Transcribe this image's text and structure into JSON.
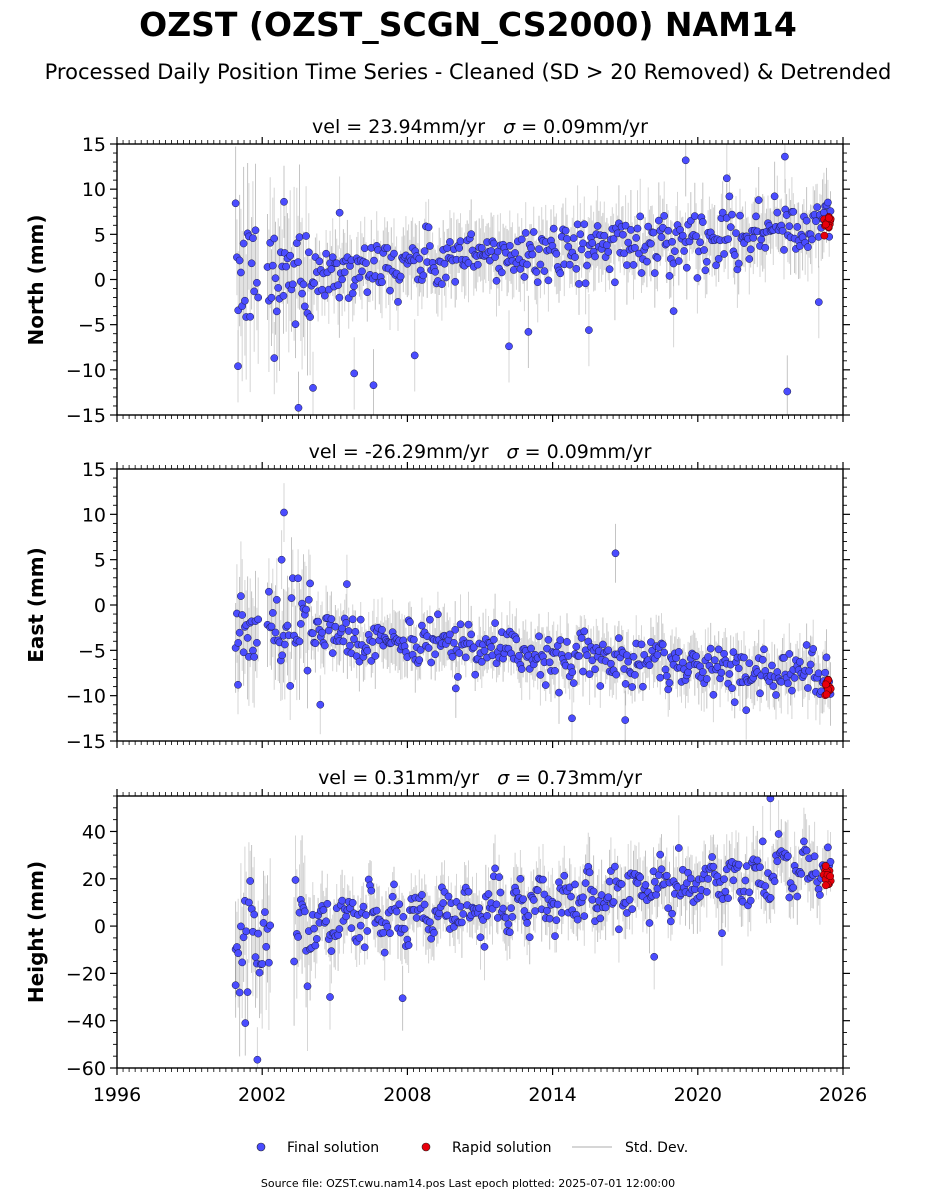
{
  "title": "OZST (OZST_SCGN_CS2000) NAM14",
  "subtitle": "Processed Daily Position Time Series - Cleaned (SD > 20 Removed) & Detrended",
  "legend": {
    "final": "Final solution",
    "rapid": "Rapid solution",
    "std": "Std. Dev."
  },
  "footer": "Source file: OZST.cwu.nam14.pos  Last epoch plotted: 2025-07-01 12:00:00",
  "colors": {
    "final": "#4a4cff",
    "rapid": "#e8000b",
    "std": "#b5b5b5",
    "std_dense": "#555555"
  },
  "chart_data": [
    {
      "type": "scatter",
      "title_prefix": "vel = ",
      "velocity": "23.94",
      "velocity_unit": "mm/yr",
      "sigma_symbol": "σ",
      "sigma": "0.09",
      "sigma_unit": "mm/yr",
      "ylabel": "North (mm)",
      "xlim": [
        1996,
        2026
      ],
      "ylim": [
        -15,
        15
      ],
      "yticks": [
        -15,
        -10,
        -5,
        0,
        5,
        10,
        15
      ],
      "xticks": [
        1996,
        2002,
        2008,
        2014,
        2020,
        2026
      ],
      "show_xticklabels": false,
      "final_solution": {
        "x_range": [
          2000.9,
          2025.5
        ],
        "gap": [
          2001.85,
          2002.2
        ],
        "trend_start": 0.0,
        "trend_end": 6.0,
        "scatter": 1.6,
        "outliers": [
          [
            2001.0,
            -9.6
          ],
          [
            2002.5,
            -8.7
          ],
          [
            2003.5,
            -14.2
          ],
          [
            2004.1,
            -12.0
          ],
          [
            2005.8,
            -10.4
          ],
          [
            2006.6,
            -11.7
          ],
          [
            2008.3,
            -8.4
          ],
          [
            2012.2,
            -7.4
          ],
          [
            2013.0,
            -5.8
          ],
          [
            2015.5,
            -5.6
          ],
          [
            2019.0,
            -3.5
          ],
          [
            2019.5,
            13.2
          ],
          [
            2021.2,
            11.2
          ],
          [
            2023.6,
            13.6
          ],
          [
            2023.7,
            -12.4
          ],
          [
            2025.0,
            -2.5
          ],
          [
            2005.2,
            7.4
          ],
          [
            2002.9,
            8.6
          ]
        ]
      },
      "rapid_solution": {
        "x_range": [
          2025.2,
          2025.5
        ],
        "y_range": [
          4.5,
          7.0
        ]
      }
    },
    {
      "type": "scatter",
      "title_prefix": "vel = ",
      "velocity": "-26.29",
      "velocity_unit": "mm/yr",
      "sigma_symbol": "σ",
      "sigma": "0.09",
      "sigma_unit": "mm/yr",
      "ylabel": "East (mm)",
      "xlim": [
        1996,
        2026
      ],
      "ylim": [
        -15,
        15
      ],
      "yticks": [
        -15,
        -10,
        -5,
        0,
        5,
        10,
        15
      ],
      "xticks": [
        1996,
        2002,
        2008,
        2014,
        2020,
        2026
      ],
      "show_xticklabels": false,
      "final_solution": {
        "x_range": [
          2000.9,
          2025.5
        ],
        "gap": [
          2001.85,
          2002.2
        ],
        "trend_start": -2.5,
        "trend_end": -8.0,
        "scatter": 1.3,
        "outliers": [
          [
            2002.9,
            10.2
          ],
          [
            2002.8,
            5.0
          ],
          [
            2016.6,
            5.7
          ],
          [
            2004.4,
            -11.0
          ],
          [
            2014.8,
            -12.5
          ],
          [
            2017.0,
            -12.7
          ],
          [
            2001.0,
            -8.8
          ],
          [
            2005.5,
            2.3
          ],
          [
            2010.0,
            -9.2
          ],
          [
            2022.0,
            -11.6
          ]
        ]
      },
      "rapid_solution": {
        "x_range": [
          2025.2,
          2025.5
        ],
        "y_range": [
          -10.0,
          -8.2
        ]
      }
    },
    {
      "type": "scatter",
      "title_prefix": "vel = ",
      "velocity": "0.31",
      "velocity_unit": "mm/yr",
      "sigma_symbol": "σ",
      "sigma": "0.73",
      "sigma_unit": "mm/yr",
      "ylabel": "Height (mm)",
      "xlim": [
        1996,
        2026
      ],
      "ylim": [
        -60,
        55
      ],
      "yticks": [
        -60,
        -40,
        -20,
        0,
        20,
        40
      ],
      "xticks": [
        1996,
        2002,
        2008,
        2014,
        2020,
        2026
      ],
      "xticklabels": [
        "1996",
        "2002",
        "2008",
        "2014",
        "2020",
        "2026"
      ],
      "show_xticklabels": true,
      "final_solution": {
        "x_range": [
          2000.9,
          2025.5
        ],
        "gap": [
          2002.35,
          2003.3
        ],
        "trend_start": -5.0,
        "trend_end": 25.0,
        "scatter": 5.5,
        "outliers": [
          [
            2001.8,
            -56.5
          ],
          [
            2001.3,
            -41.0
          ],
          [
            2023.0,
            54.0
          ],
          [
            2004.8,
            -30.0
          ],
          [
            2007.8,
            -30.5
          ],
          [
            2018.2,
            -13.0
          ],
          [
            2021.0,
            -3.0
          ],
          [
            2000.9,
            -25.0
          ]
        ]
      },
      "rapid_solution": {
        "x_range": [
          2025.2,
          2025.5
        ],
        "y_range": [
          17.0,
          26.0
        ]
      }
    }
  ]
}
